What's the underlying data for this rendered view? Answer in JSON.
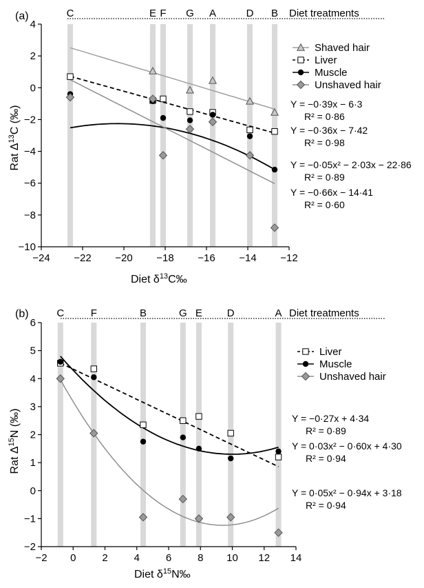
{
  "chart_data": [
    {
      "panel_label": "(a)",
      "type": "scatter",
      "xlabel": "Diet δ13C‰",
      "ylabel": "Rat Δ13C (‰)",
      "xlim": [
        -24,
        -12
      ],
      "ylim": [
        -10,
        4
      ],
      "x_ticks": [
        -24,
        -22,
        -20,
        -18,
        -16,
        -14,
        -12
      ],
      "y_ticks": [
        -10,
        -8,
        -6,
        -4,
        -2,
        0,
        2,
        4
      ],
      "treatments_label": "Diet treatments",
      "treatments": [
        {
          "letter": "C",
          "x": -22.6
        },
        {
          "letter": "E",
          "x": -18.6
        },
        {
          "letter": "F",
          "x": -18.1
        },
        {
          "letter": "G",
          "x": -16.8
        },
        {
          "letter": "A",
          "x": -15.7
        },
        {
          "letter": "D",
          "x": -13.9
        },
        {
          "letter": "B",
          "x": -12.7
        }
      ],
      "series": [
        {
          "name": "Shaved hair",
          "marker": "triangle",
          "color": "#a0a0a0",
          "line_style": "solid",
          "points": [
            [
              -18.6,
              1.05
            ],
            [
              -16.8,
              -0.15
            ],
            [
              -15.7,
              0.45
            ],
            [
              -13.9,
              -0.85
            ],
            [
              -12.7,
              -1.55
            ]
          ],
          "fit": {
            "type": "linear",
            "coef": [
              -0.39,
              -6.3
            ],
            "x_range": [
              -22.6,
              -12.7
            ]
          }
        },
        {
          "name": "Liver",
          "marker": "square",
          "color": "#000000",
          "line_style": "dashed",
          "points": [
            [
              -22.6,
              0.7
            ],
            [
              -18.6,
              -0.8
            ],
            [
              -18.1,
              -0.7
            ],
            [
              -16.8,
              -1.5
            ],
            [
              -15.7,
              -1.55
            ],
            [
              -13.9,
              -2.65
            ],
            [
              -12.7,
              -2.75
            ]
          ],
          "fit": {
            "type": "linear",
            "coef": [
              -0.36,
              -7.42
            ],
            "x_range": [
              -22.6,
              -12.7
            ]
          }
        },
        {
          "name": "Muscle",
          "marker": "circle",
          "color": "#000000",
          "line_style": "solid",
          "points": [
            [
              -22.6,
              -0.4
            ],
            [
              -18.6,
              -0.85
            ],
            [
              -18.1,
              -1.9
            ],
            [
              -16.8,
              -2.05
            ],
            [
              -15.7,
              -1.7
            ],
            [
              -13.9,
              -3.05
            ],
            [
              -12.7,
              -5.15
            ]
          ],
          "fit": {
            "type": "quadratic",
            "coef": [
              -0.05,
              -2.03,
              -22.86
            ],
            "x_range": [
              -22.6,
              -12.7
            ]
          }
        },
        {
          "name": "Unshaved hair",
          "marker": "diamond",
          "color": "#909090",
          "line_style": "solid",
          "points": [
            [
              -22.6,
              -0.6
            ],
            [
              -18.6,
              -0.7
            ],
            [
              -18.1,
              -4.25
            ],
            [
              -16.8,
              -2.6
            ],
            [
              -15.7,
              -2.15
            ],
            [
              -13.9,
              -4.25
            ],
            [
              -12.7,
              -8.8
            ]
          ],
          "fit": {
            "type": "linear",
            "coef": [
              -0.66,
              -14.41
            ],
            "x_range": [
              -22.6,
              -12.7
            ]
          }
        }
      ],
      "equations": [
        {
          "eq": "Y = −0·39x − 6·3",
          "r2": "R² = 0·86"
        },
        {
          "eq": "Y = −0·36x − 7·42",
          "r2": "R² = 0·98"
        },
        {
          "eq": "Y = −0·05x² − 2·03x − 22·86",
          "r2": "R² = 0·89"
        },
        {
          "eq": "Y = −0·66x − 14·41",
          "r2": "R² = 0·60"
        }
      ]
    },
    {
      "panel_label": "(b)",
      "type": "scatter",
      "xlabel": "Diet δ15N‰",
      "ylabel": "Rat Δ15N (‰)",
      "xlim": [
        -2,
        14
      ],
      "ylim": [
        -2,
        6
      ],
      "x_ticks": [
        -2,
        0,
        2,
        4,
        6,
        8,
        10,
        12,
        14
      ],
      "y_ticks": [
        -2,
        -1,
        0,
        1,
        2,
        3,
        4,
        5,
        6
      ],
      "treatments_label": "Diet treatments",
      "treatments": [
        {
          "letter": "C",
          "x": -0.8
        },
        {
          "letter": "F",
          "x": 1.3
        },
        {
          "letter": "B",
          "x": 4.4
        },
        {
          "letter": "G",
          "x": 6.9
        },
        {
          "letter": "E",
          "x": 7.9
        },
        {
          "letter": "D",
          "x": 9.9
        },
        {
          "letter": "A",
          "x": 12.9
        }
      ],
      "series": [
        {
          "name": "Liver",
          "marker": "square",
          "color": "#000000",
          "line_style": "dashed",
          "points": [
            [
              -0.8,
              4.55
            ],
            [
              1.3,
              4.35
            ],
            [
              4.4,
              2.35
            ],
            [
              6.9,
              2.5
            ],
            [
              7.9,
              2.65
            ],
            [
              9.9,
              2.05
            ],
            [
              12.9,
              1.2
            ]
          ],
          "fit": {
            "type": "linear",
            "coef": [
              -0.27,
              4.34
            ],
            "x_range": [
              -0.8,
              12.9
            ]
          }
        },
        {
          "name": "Muscle",
          "marker": "circle",
          "color": "#000000",
          "line_style": "solid",
          "points": [
            [
              -0.8,
              4.6
            ],
            [
              1.3,
              4.05
            ],
            [
              4.4,
              1.75
            ],
            [
              6.9,
              1.9
            ],
            [
              7.9,
              1.5
            ],
            [
              9.9,
              1.15
            ],
            [
              12.9,
              1.4
            ]
          ],
          "fit": {
            "type": "quadratic",
            "coef": [
              0.03,
              -0.6,
              4.3
            ],
            "x_range": [
              -0.8,
              12.9
            ]
          }
        },
        {
          "name": "Unshaved hair",
          "marker": "diamond",
          "color": "#909090",
          "line_style": "solid",
          "points": [
            [
              -0.8,
              4.0
            ],
            [
              1.3,
              2.05
            ],
            [
              4.4,
              -0.95
            ],
            [
              6.9,
              -0.3
            ],
            [
              7.9,
              -1.0
            ],
            [
              9.9,
              -0.95
            ],
            [
              12.9,
              -1.5
            ]
          ],
          "fit": {
            "type": "quadratic",
            "coef": [
              0.05,
              -0.94,
              3.18
            ],
            "x_range": [
              -0.8,
              12.9
            ]
          }
        }
      ],
      "equations": [
        {
          "eq": "Y = −0·27x + 4·34",
          "r2": "R² = 0·89"
        },
        {
          "eq": "Y = 0·03x² − 0·60x + 4·30",
          "r2": "R² = 0·94"
        },
        {
          "eq": "Y = 0·05x² − 0·94x + 3·18",
          "r2": "R² = 0·94"
        }
      ]
    }
  ]
}
